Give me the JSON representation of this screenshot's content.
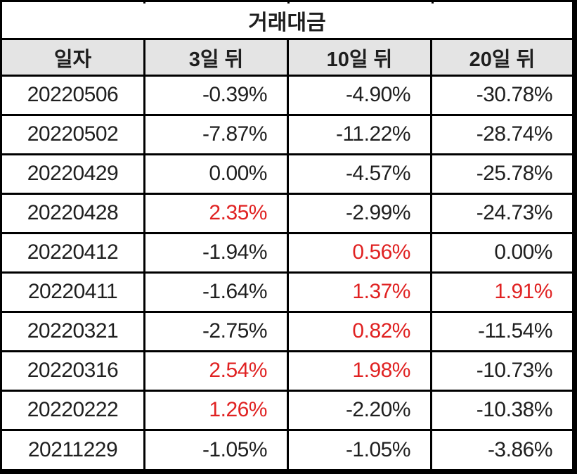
{
  "chart_data": {
    "type": "table",
    "title": "거래대금",
    "columns": [
      "일자",
      "3일 뒤",
      "10일 뒤",
      "20일 뒤"
    ],
    "rows": [
      [
        "20220506",
        "-0.39%",
        "-4.90%",
        "-30.78%"
      ],
      [
        "20220502",
        "-7.87%",
        "-11.22%",
        "-28.74%"
      ],
      [
        "20220429",
        "0.00%",
        "-4.57%",
        "-25.78%"
      ],
      [
        "20220428",
        "2.35%",
        "-2.99%",
        "-24.73%"
      ],
      [
        "20220412",
        "-1.94%",
        "0.56%",
        "0.00%"
      ],
      [
        "20220411",
        "-1.64%",
        "1.37%",
        "1.91%"
      ],
      [
        "20220321",
        "-2.75%",
        "0.82%",
        "-11.54%"
      ],
      [
        "20220316",
        "2.54%",
        "1.98%",
        "-10.73%"
      ],
      [
        "20220222",
        "1.26%",
        "-2.20%",
        "-10.38%"
      ],
      [
        "20211229",
        "-1.05%",
        "-1.05%",
        "-3.86%"
      ]
    ],
    "legend_note": "positive percentage values shown in red, zero and negative in black",
    "layout": "merged title row, gray header row, 10 data rows, 4 equal columns"
  },
  "colors": {
    "positive_text": "#e02222",
    "default_text": "#1f1f1f",
    "header_bg": "#e4e4e4",
    "border": "#000000",
    "background": "#ffffff"
  }
}
